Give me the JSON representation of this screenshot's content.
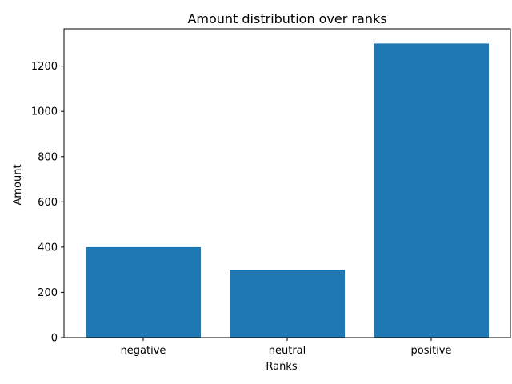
{
  "chart_data": {
    "type": "bar",
    "title": "Amount distribution over ranks",
    "xlabel": "Ranks",
    "ylabel": "Amount",
    "categories": [
      "negative",
      "neutral",
      "positive"
    ],
    "values": [
      400,
      300,
      1300
    ],
    "ylim": [
      0,
      1365
    ],
    "yticks": [
      0,
      200,
      400,
      600,
      800,
      1000,
      1200
    ],
    "bar_color": "#1f77b4",
    "grid": false,
    "legend": "none"
  }
}
